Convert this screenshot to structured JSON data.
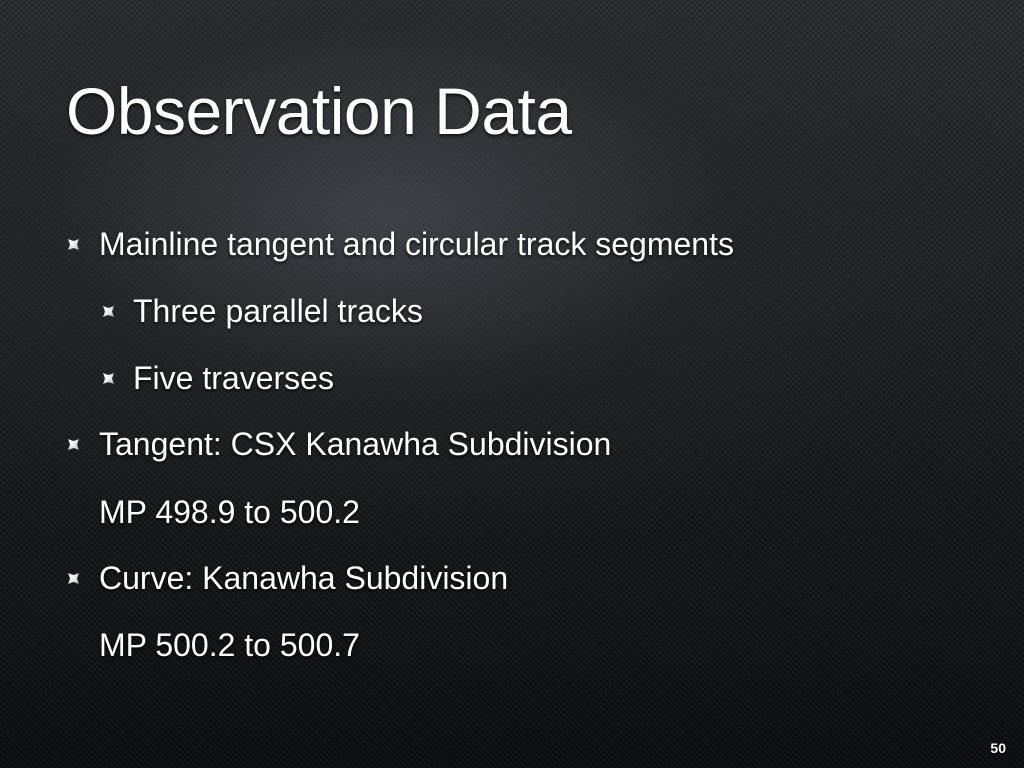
{
  "slide": {
    "title": "Observation Data",
    "bullets": [
      {
        "level": 1,
        "text": "Mainline tangent and circular track segments"
      },
      {
        "level": 2,
        "text": "Three parallel tracks"
      },
      {
        "level": 2,
        "text": "Five traverses"
      },
      {
        "level": 1,
        "text": "Tangent: CSX Kanawha Subdivision"
      },
      {
        "level": 0,
        "text": "MP 498.9 to 500.2"
      },
      {
        "level": 1,
        "text": "Curve: Kanawha Subdivision"
      },
      {
        "level": 0,
        "text": "MP 500.2 to 500.7"
      }
    ],
    "page_number": "50"
  }
}
